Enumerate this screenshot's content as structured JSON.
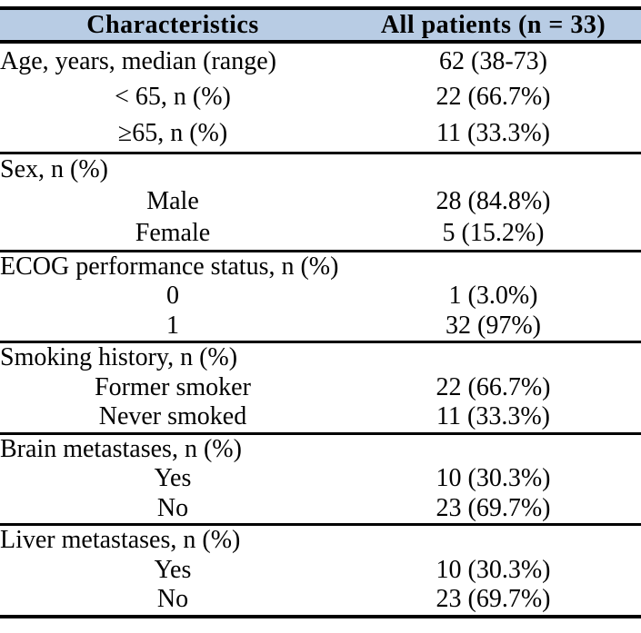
{
  "colors": {
    "header_bg": "#b8cce4",
    "border": "#000000",
    "text": "#000000"
  },
  "table": {
    "header": {
      "col1": "Characteristics",
      "col2": "All patients (n = 33)"
    },
    "sections": [
      {
        "rows": [
          {
            "label": "Age, years, median (range)",
            "value": "62 (38-73)",
            "indent": false
          },
          {
            "label": "< 65, n (%)",
            "value": "22 (66.7%)",
            "indent": true
          },
          {
            "label": "≥65, n (%)",
            "value": "11 (33.3%)",
            "indent": true
          }
        ]
      },
      {
        "rows": [
          {
            "label": "Sex, n (%)",
            "value": "",
            "indent": false
          },
          {
            "label": "Male",
            "value": "28 (84.8%)",
            "indent": true
          },
          {
            "label": "Female",
            "value": "5 (15.2%)",
            "indent": true
          }
        ]
      },
      {
        "rows": [
          {
            "label": "ECOG performance status, n (%)",
            "value": "",
            "indent": false
          },
          {
            "label": "0",
            "value": "1 (3.0%)",
            "indent": true
          },
          {
            "label": "1",
            "value": "32 (97%)",
            "indent": true
          }
        ]
      },
      {
        "rows": [
          {
            "label": "Smoking history, n (%)",
            "value": "",
            "indent": false
          },
          {
            "label": "Former smoker",
            "value": "22 (66.7%)",
            "indent": true
          },
          {
            "label": "Never smoked",
            "value": "11 (33.3%)",
            "indent": true
          }
        ]
      },
      {
        "rows": [
          {
            "label": "Brain metastases, n (%)",
            "value": "",
            "indent": false
          },
          {
            "label": "Yes",
            "value": "10 (30.3%)",
            "indent": true
          },
          {
            "label": "No",
            "value": "23 (69.7%)",
            "indent": true
          }
        ]
      },
      {
        "rows": [
          {
            "label": "Liver metastases, n (%)",
            "value": "",
            "indent": false
          },
          {
            "label": "Yes",
            "value": "10 (30.3%)",
            "indent": true
          },
          {
            "label": "No",
            "value": "23 (69.7%)",
            "indent": true
          }
        ]
      }
    ]
  }
}
